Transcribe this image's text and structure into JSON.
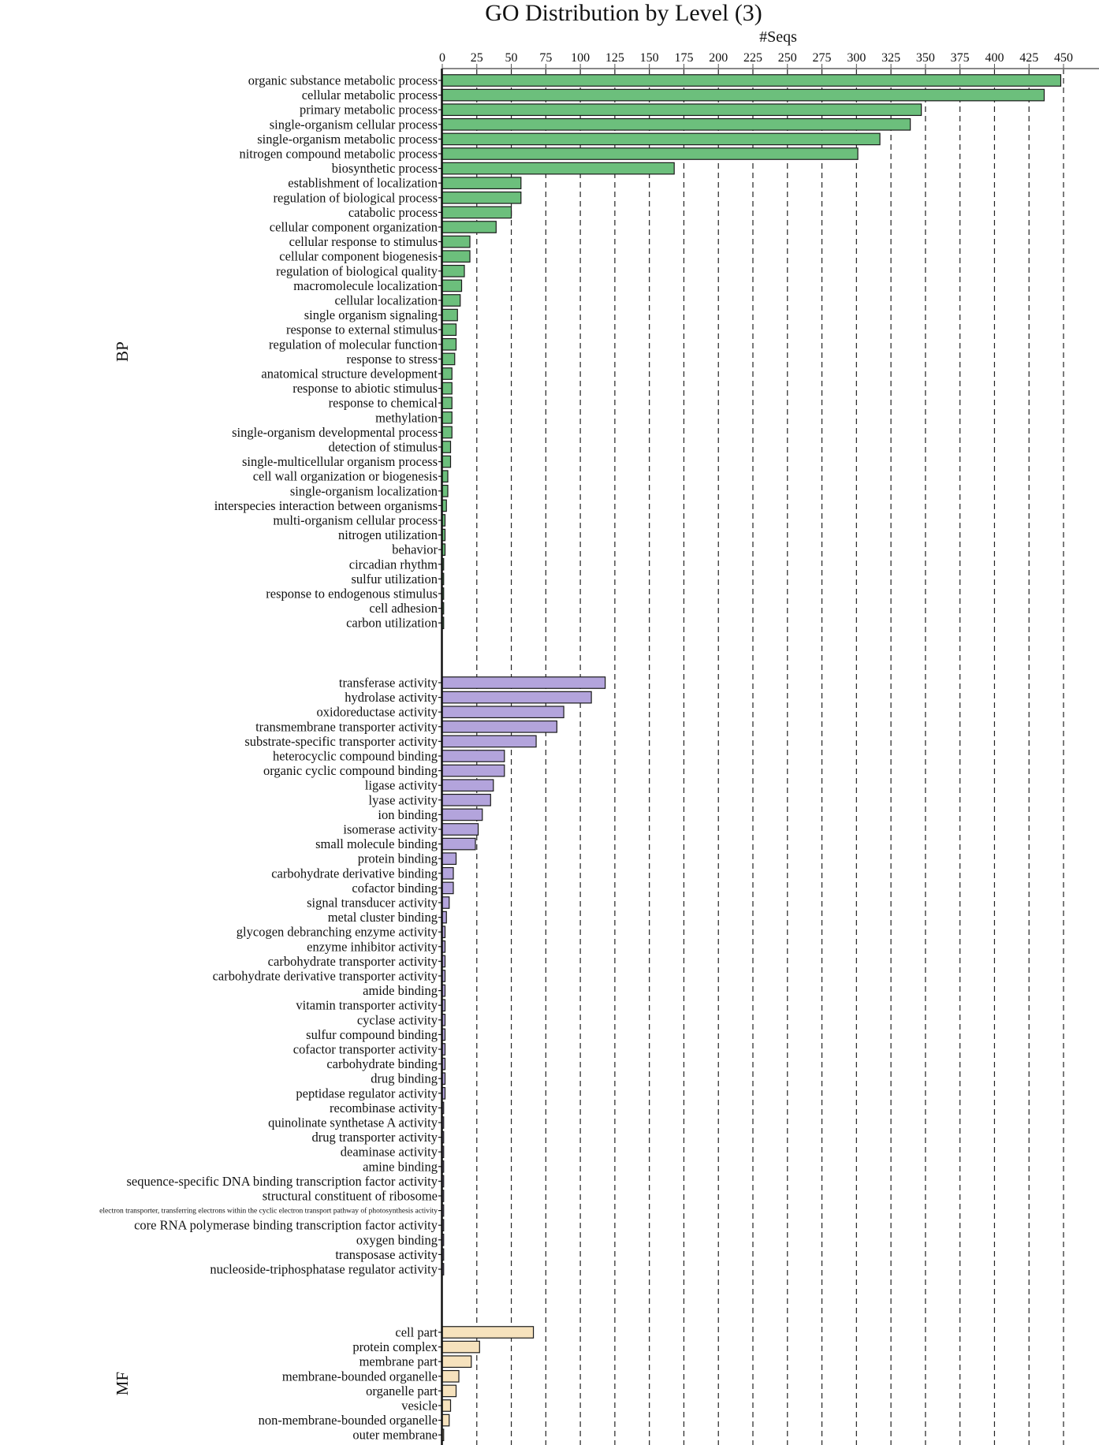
{
  "chart_data": {
    "type": "bar",
    "orientation": "horizontal",
    "title": "GO Distribution by Level (3)",
    "xlabel": "#Seqs",
    "xlim": [
      0,
      450
    ],
    "x_ticks": [
      "0",
      "25",
      "50",
      "75",
      "100",
      "125",
      "150",
      "175",
      "200",
      "225",
      "250",
      "275",
      "300",
      "325",
      "350",
      "375",
      "400",
      "425",
      "450"
    ],
    "grid": "vertical dashed",
    "groups": [
      {
        "label": "BP",
        "color": "#6cbf7c",
        "categories": [
          "organic substance metabolic process",
          "cellular metabolic process",
          "primary metabolic process",
          "single-organism cellular process",
          "single-organism metabolic process",
          "nitrogen compound metabolic process",
          "biosynthetic process",
          "establishment of localization",
          "regulation of biological process",
          "catabolic process",
          "cellular component organization",
          "cellular response to stimulus",
          "cellular component biogenesis",
          "regulation of biological quality",
          "macromolecule localization",
          "cellular localization",
          "single organism signaling",
          "response to external stimulus",
          "regulation of molecular function",
          "response to stress",
          "anatomical structure development",
          "response to abiotic stimulus",
          "response to chemical",
          "methylation",
          "single-organism developmental process",
          "detection of stimulus",
          "single-multicellular organism process",
          "cell wall organization or biogenesis",
          "single-organism localization",
          "interspecies interaction between organisms",
          "multi-organism cellular process",
          "nitrogen utilization",
          "behavior",
          "circadian rhythm",
          "sulfur utilization",
          "response to endogenous stimulus",
          "cell adhesion",
          "carbon utilization"
        ],
        "values": [
          448,
          436,
          347,
          339,
          317,
          301,
          168,
          57,
          57,
          50,
          39,
          20,
          20,
          16,
          14,
          13,
          11,
          10,
          10,
          9,
          7,
          7,
          7,
          7,
          7,
          6,
          6,
          4,
          4,
          3,
          2,
          2,
          2,
          1,
          1,
          1,
          1,
          1
        ]
      },
      {
        "label": "",
        "color": "#b3a4dc",
        "categories": [
          "transferase activity",
          "hydrolase activity",
          "oxidoreductase activity",
          "transmembrane transporter activity",
          "substrate-specific transporter activity",
          "heterocyclic compound binding",
          "organic cyclic compound binding",
          "ligase activity",
          "lyase activity",
          "ion binding",
          "isomerase activity",
          "small molecule binding",
          "protein binding",
          "carbohydrate derivative binding",
          "cofactor binding",
          "signal transducer activity",
          "metal cluster binding",
          "glycogen debranching enzyme activity",
          "enzyme inhibitor activity",
          "carbohydrate transporter activity",
          "carbohydrate derivative transporter activity",
          "amide binding",
          "vitamin transporter activity",
          "cyclase activity",
          "sulfur compound binding",
          "cofactor transporter activity",
          "carbohydrate binding",
          "drug binding",
          "peptidase regulator activity",
          "recombinase activity",
          "quinolinate synthetase A activity",
          "drug transporter activity",
          "deaminase activity",
          "amine binding",
          "sequence-specific DNA binding transcription factor activity",
          "structural constituent of ribosome",
          "electron transporter, transferring electrons within the cyclic electron transport pathway of photosynthesis activity",
          "core RNA polymerase binding transcription factor activity",
          "oxygen binding",
          "transposase activity",
          "nucleoside-triphosphatase regulator activity"
        ],
        "values": [
          118,
          108,
          88,
          83,
          68,
          45,
          45,
          37,
          35,
          29,
          26,
          24,
          10,
          8,
          8,
          5,
          3,
          2,
          2,
          2,
          2,
          2,
          2,
          2,
          2,
          2,
          2,
          2,
          2,
          1,
          1,
          1,
          1,
          1,
          1,
          1,
          1,
          1,
          1,
          1,
          1
        ]
      },
      {
        "label": "MF",
        "color": "#f6e2bd",
        "categories": [
          "cell part",
          "protein complex",
          "membrane part",
          "membrane-bounded organelle",
          "organelle part",
          "vesicle",
          "non-membrane-bounded organelle",
          "outer membrane"
        ],
        "values": [
          66,
          27,
          21,
          12,
          10,
          6,
          5,
          1
        ]
      }
    ]
  }
}
